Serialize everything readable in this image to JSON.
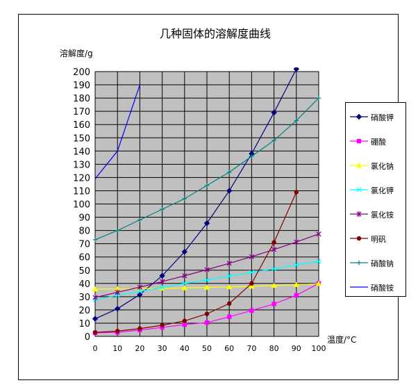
{
  "chart_data": {
    "type": "line",
    "title": "几种固体的溶解度曲线",
    "ylabel": "溶解度/g",
    "xlabel": "温度/°C",
    "x": [
      0,
      10,
      20,
      30,
      40,
      50,
      60,
      70,
      80,
      90,
      100
    ],
    "xlim": [
      0,
      100
    ],
    "ylim": [
      0,
      200
    ],
    "xticks": [
      "0",
      "10",
      "20",
      "30",
      "40",
      "50",
      "60",
      "70",
      "80",
      "90",
      "100"
    ],
    "yticks": [
      "0",
      "10",
      "20",
      "30",
      "40",
      "50",
      "60",
      "70",
      "80",
      "90",
      "100",
      "110",
      "120",
      "130",
      "140",
      "150",
      "160",
      "170",
      "180",
      "190",
      "200"
    ],
    "grid": true,
    "plot_background": "#c0c0c0",
    "legend_position": "right",
    "series": [
      {
        "name": "硝酸钾",
        "color": "#000080",
        "marker": "diamond",
        "points": [
          [
            0,
            13.3
          ],
          [
            10,
            20.9
          ],
          [
            20,
            31.6
          ],
          [
            30,
            45.8
          ],
          [
            40,
            63.9
          ],
          [
            50,
            85.5
          ],
          [
            60,
            110
          ],
          [
            70,
            138
          ],
          [
            80,
            169
          ],
          [
            90,
            202
          ]
        ]
      },
      {
        "name": "硼酸",
        "color": "#ff00ff",
        "marker": "square",
        "points": [
          [
            0,
            2.7
          ],
          [
            10,
            3.1
          ],
          [
            20,
            4.8
          ],
          [
            30,
            6.8
          ],
          [
            40,
            8.9
          ],
          [
            50,
            10.4
          ],
          [
            60,
            14.8
          ],
          [
            70,
            19.5
          ],
          [
            80,
            24.5
          ],
          [
            90,
            31
          ],
          [
            100,
            40
          ]
        ]
      },
      {
        "name": "氯化钠",
        "color": "#ffff00",
        "marker": "triangle",
        "points": [
          [
            0,
            35.7
          ],
          [
            10,
            35.8
          ],
          [
            20,
            36
          ],
          [
            30,
            36.3
          ],
          [
            40,
            36.6
          ],
          [
            50,
            37
          ],
          [
            60,
            37.3
          ],
          [
            70,
            37.8
          ],
          [
            80,
            38.4
          ],
          [
            90,
            39
          ],
          [
            100,
            39.8
          ]
        ]
      },
      {
        "name": "氯化钾",
        "color": "#00ffff",
        "marker": "x",
        "points": [
          [
            0,
            27.6
          ],
          [
            10,
            31
          ],
          [
            20,
            34
          ],
          [
            30,
            37
          ],
          [
            40,
            40
          ],
          [
            50,
            42.6
          ],
          [
            60,
            45.5
          ],
          [
            70,
            48.3
          ],
          [
            80,
            51.1
          ],
          [
            90,
            54
          ],
          [
            100,
            56.7
          ]
        ]
      },
      {
        "name": "氯化铵",
        "color": "#800080",
        "marker": "star",
        "points": [
          [
            0,
            29.4
          ],
          [
            10,
            33.3
          ],
          [
            20,
            37.2
          ],
          [
            30,
            41.4
          ],
          [
            40,
            45.8
          ],
          [
            50,
            50.4
          ],
          [
            60,
            55.2
          ],
          [
            70,
            60.2
          ],
          [
            80,
            65.6
          ],
          [
            90,
            71.3
          ],
          [
            100,
            77.3
          ]
        ]
      },
      {
        "name": "明矾",
        "color": "#800000",
        "marker": "circle",
        "points": [
          [
            0,
            3
          ],
          [
            10,
            4
          ],
          [
            20,
            5.9
          ],
          [
            30,
            8.4
          ],
          [
            40,
            11.7
          ],
          [
            50,
            17
          ],
          [
            60,
            24.8
          ],
          [
            70,
            40
          ],
          [
            80,
            71
          ],
          [
            90,
            109
          ]
        ]
      },
      {
        "name": "硝酸钠",
        "color": "#008080",
        "marker": "plus",
        "points": [
          [
            0,
            73
          ],
          [
            10,
            80
          ],
          [
            20,
            88
          ],
          [
            30,
            96
          ],
          [
            40,
            104
          ],
          [
            50,
            114
          ],
          [
            60,
            124
          ],
          [
            70,
            136
          ],
          [
            80,
            148
          ],
          [
            90,
            163
          ],
          [
            100,
            180
          ]
        ]
      },
      {
        "name": "硝酸铵",
        "color": "#0000ff",
        "marker": "none",
        "points": [
          [
            0,
            119
          ],
          [
            10,
            140
          ],
          [
            20,
            190
          ]
        ]
      }
    ]
  }
}
